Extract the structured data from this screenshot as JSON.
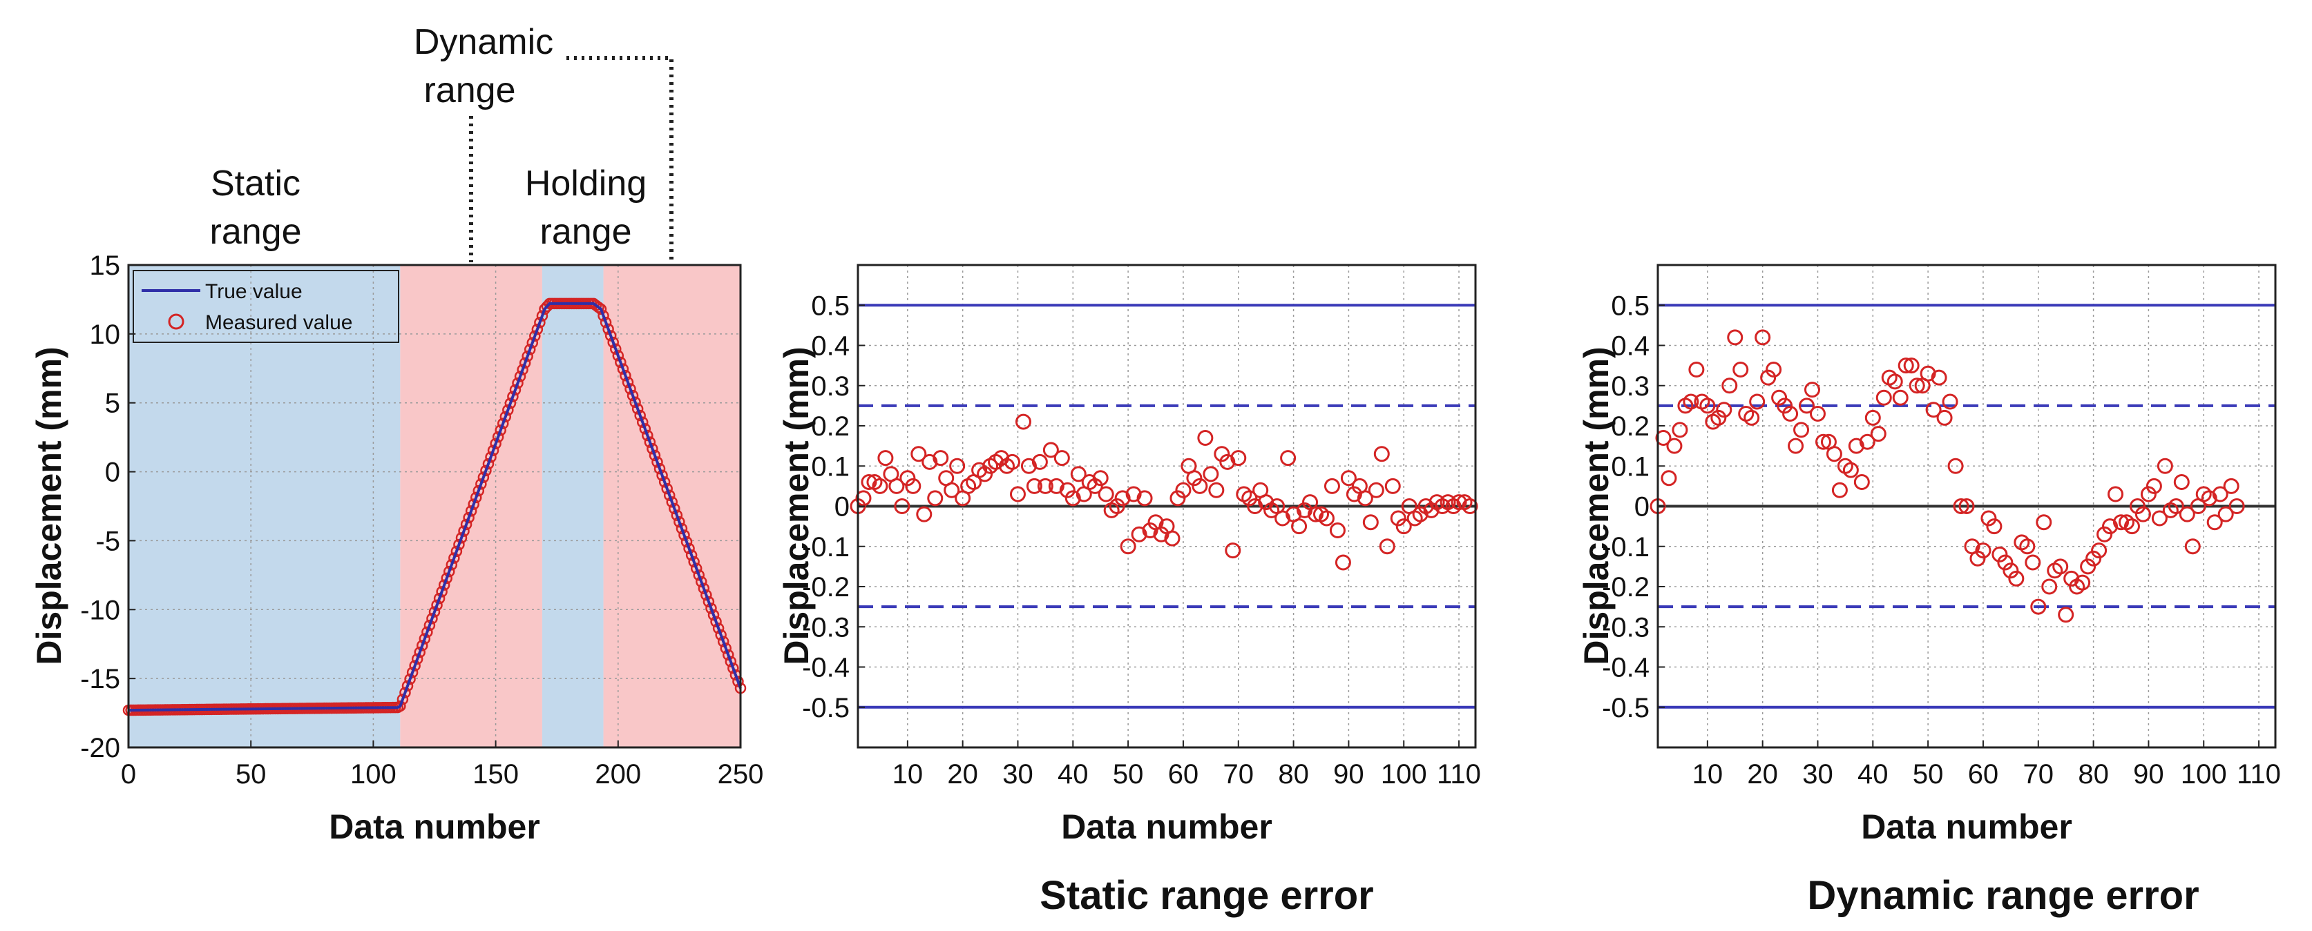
{
  "colors": {
    "static_band": "#c3d9ec",
    "dynamic_band": "#f9c7c8",
    "true_line": "#2f2fa8",
    "marker": "#d42424",
    "limit_line": "#3a3ab8",
    "grid": "#9a9a9a"
  },
  "annotations": {
    "static_range": [
      "Static",
      "range"
    ],
    "dynamic_range": [
      "Dynamic",
      "range"
    ],
    "holding_range": [
      "Holding",
      "range"
    ]
  },
  "captions": {
    "static_error": "Static range error",
    "dynamic_error": "Dynamic range error"
  },
  "chart_data": [
    {
      "type": "line",
      "xlabel": "Data number",
      "ylabel": "Displacement (mm)",
      "xlim": [
        0,
        250
      ],
      "ylim": [
        -20,
        15
      ],
      "xticks": [
        0,
        50,
        100,
        150,
        200,
        250
      ],
      "yticks": [
        -20,
        -15,
        -10,
        -5,
        0,
        5,
        10,
        15
      ],
      "grid": true,
      "legend": {
        "placement": "top-left",
        "entries": [
          "True value",
          "Measured value"
        ]
      },
      "regions": [
        {
          "from": 0,
          "to": 111,
          "kind": "static"
        },
        {
          "from": 111,
          "to": 169,
          "kind": "dynamic"
        },
        {
          "from": 169,
          "to": 194,
          "kind": "static"
        },
        {
          "from": 194,
          "to": 250,
          "kind": "dynamic"
        }
      ],
      "series": [
        {
          "name": "True value",
          "style": "line",
          "x": [
            0,
            110,
            111,
            170,
            172,
            190,
            193,
            250
          ],
          "y": [
            -17.3,
            -17.1,
            -17.0,
            11.8,
            12.2,
            12.2,
            11.8,
            -15.7
          ]
        },
        {
          "name": "Measured value",
          "style": "circle-markers",
          "sample_of_true_value": true,
          "x_range": [
            0,
            250
          ],
          "count": 251
        }
      ]
    },
    {
      "type": "scatter",
      "title": "Static range error",
      "xlabel": "Data number",
      "ylabel": "Displacement (mm)",
      "xlim": [
        1,
        113
      ],
      "ylim": [
        -0.6,
        0.6
      ],
      "xticks": [
        10,
        20,
        30,
        40,
        50,
        60,
        70,
        80,
        90,
        100,
        110
      ],
      "yticks": [
        0.5,
        0.4,
        0.3,
        0.2,
        0.1,
        0,
        -0.1,
        -0.2,
        -0.3,
        -0.4,
        -0.5
      ],
      "ytick_labels": [
        "0.5",
        "0.4",
        "0.3",
        "0.2",
        "0.1",
        "0",
        "-0.1",
        "-0.2",
        "-0.3",
        "-0.4",
        "-0.5"
      ],
      "grid": true,
      "reference_lines": [
        {
          "y": 0.5,
          "style": "solid"
        },
        {
          "y": -0.5,
          "style": "solid"
        },
        {
          "y": 0.25,
          "style": "dashed"
        },
        {
          "y": -0.25,
          "style": "dashed"
        },
        {
          "y": 0,
          "style": "zero"
        }
      ],
      "x": [
        1,
        2,
        3,
        4,
        5,
        6,
        7,
        8,
        9,
        10,
        11,
        12,
        13,
        14,
        15,
        16,
        17,
        18,
        19,
        20,
        21,
        22,
        23,
        24,
        25,
        26,
        27,
        28,
        29,
        30,
        31,
        32,
        33,
        34,
        35,
        36,
        37,
        38,
        39,
        40,
        41,
        42,
        43,
        44,
        45,
        46,
        47,
        48,
        49,
        50,
        51,
        52,
        53,
        54,
        55,
        56,
        57,
        58,
        59,
        60,
        61,
        62,
        63,
        64,
        65,
        66,
        67,
        68,
        69,
        70,
        71,
        72,
        73,
        74,
        75,
        76,
        77,
        78,
        79,
        80,
        81,
        82,
        83,
        84,
        85,
        86,
        87,
        88,
        89,
        90,
        91,
        92,
        93,
        94,
        95,
        96,
        97,
        98,
        99,
        100,
        101,
        102,
        103,
        104,
        105,
        106,
        107,
        108,
        109,
        110,
        111,
        112
      ],
      "y": [
        0.0,
        0.02,
        0.06,
        0.06,
        0.05,
        0.12,
        0.08,
        0.05,
        0.0,
        0.07,
        0.05,
        0.13,
        -0.02,
        0.11,
        0.02,
        0.12,
        0.07,
        0.04,
        0.1,
        0.02,
        0.05,
        0.06,
        0.09,
        0.08,
        0.1,
        0.11,
        0.12,
        0.1,
        0.11,
        0.03,
        0.21,
        0.1,
        0.05,
        0.11,
        0.05,
        0.14,
        0.05,
        0.12,
        0.04,
        0.02,
        0.08,
        0.03,
        0.06,
        0.05,
        0.07,
        0.03,
        -0.01,
        0.0,
        0.02,
        -0.1,
        0.03,
        -0.07,
        0.02,
        -0.06,
        -0.04,
        -0.07,
        -0.05,
        -0.08,
        0.02,
        0.04,
        0.1,
        0.07,
        0.05,
        0.17,
        0.08,
        0.04,
        0.13,
        0.11,
        -0.11,
        0.12,
        0.03,
        0.02,
        0.0,
        0.04,
        0.01,
        -0.01,
        0.0,
        -0.03,
        0.12,
        -0.02,
        -0.05,
        -0.01,
        0.01,
        -0.02,
        -0.02,
        -0.03,
        0.05,
        -0.06,
        -0.14,
        0.07,
        0.03,
        0.05,
        0.02,
        -0.04,
        0.04,
        0.13,
        -0.1,
        0.05,
        -0.03,
        -0.05,
        0.0,
        -0.03,
        -0.02,
        0.0,
        -0.01,
        0.01,
        0.0,
        0.01,
        0.0,
        0.01,
        0.01,
        0.0
      ]
    },
    {
      "type": "scatter",
      "title": "Dynamic range error",
      "xlabel": "Data number",
      "ylabel": "Displacement (mm)",
      "xlim": [
        1,
        113
      ],
      "ylim": [
        -0.6,
        0.6
      ],
      "xticks": [
        10,
        20,
        30,
        40,
        50,
        60,
        70,
        80,
        90,
        100,
        110
      ],
      "yticks": [
        0.5,
        0.4,
        0.3,
        0.2,
        0.1,
        0,
        -0.1,
        -0.2,
        -0.3,
        -0.4,
        -0.5
      ],
      "ytick_labels": [
        "0.5",
        "0.4",
        "0.3",
        "0.2",
        "0.1",
        "0",
        "-0.1",
        "-0.2",
        "-0.3",
        "-0.4",
        "-0.5"
      ],
      "grid": true,
      "reference_lines": [
        {
          "y": 0.5,
          "style": "solid"
        },
        {
          "y": -0.5,
          "style": "solid"
        },
        {
          "y": 0.25,
          "style": "dashed"
        },
        {
          "y": -0.25,
          "style": "dashed"
        },
        {
          "y": 0,
          "style": "zero"
        }
      ],
      "x": [
        1,
        2,
        3,
        4,
        5,
        6,
        7,
        8,
        9,
        10,
        11,
        12,
        13,
        14,
        15,
        16,
        17,
        18,
        19,
        20,
        21,
        22,
        23,
        24,
        25,
        26,
        27,
        28,
        29,
        30,
        31,
        32,
        33,
        34,
        35,
        36,
        37,
        38,
        39,
        40,
        41,
        42,
        43,
        44,
        45,
        46,
        47,
        48,
        49,
        50,
        51,
        52,
        53,
        54,
        55,
        56,
        57,
        58,
        59,
        60,
        61,
        62,
        63,
        64,
        65,
        66,
        67,
        68,
        69,
        70,
        71,
        72,
        73,
        74,
        75,
        76,
        77,
        78,
        79,
        80,
        81,
        82,
        83,
        84,
        85,
        86,
        87,
        88,
        89,
        90,
        91,
        92,
        93,
        94,
        95,
        96,
        97,
        98,
        99,
        100,
        101,
        102,
        103,
        104,
        105,
        106
      ],
      "y": [
        0.0,
        0.17,
        0.07,
        0.15,
        0.19,
        0.25,
        0.26,
        0.34,
        0.26,
        0.25,
        0.21,
        0.22,
        0.24,
        0.3,
        0.42,
        0.34,
        0.23,
        0.22,
        0.26,
        0.42,
        0.32,
        0.34,
        0.27,
        0.25,
        0.23,
        0.15,
        0.19,
        0.25,
        0.29,
        0.23,
        0.16,
        0.16,
        0.13,
        0.04,
        0.1,
        0.09,
        0.15,
        0.06,
        0.16,
        0.22,
        0.18,
        0.27,
        0.32,
        0.31,
        0.27,
        0.35,
        0.35,
        0.3,
        0.3,
        0.33,
        0.24,
        0.32,
        0.22,
        0.26,
        0.1,
        -0.0,
        -0.0,
        -0.1,
        -0.13,
        -0.11,
        -0.03,
        -0.05,
        -0.12,
        -0.14,
        -0.16,
        -0.18,
        -0.09,
        -0.1,
        -0.14,
        -0.25,
        -0.04,
        -0.2,
        -0.16,
        -0.15,
        -0.27,
        -0.18,
        -0.2,
        -0.19,
        -0.15,
        -0.13,
        -0.11,
        -0.07,
        -0.05,
        0.03,
        -0.04,
        -0.04,
        -0.05,
        0.0,
        -0.02,
        0.03,
        0.05,
        -0.03,
        0.1,
        -0.01,
        0.0,
        0.06,
        -0.02,
        -0.1,
        0.0,
        0.03,
        0.02,
        -0.04,
        0.03,
        -0.02,
        0.05,
        0.0
      ]
    }
  ]
}
